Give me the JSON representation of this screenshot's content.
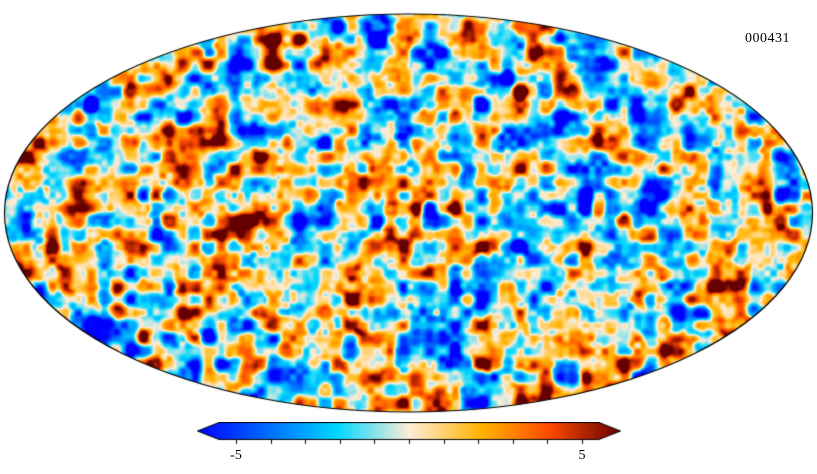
{
  "figure": {
    "background": "#ffffff"
  },
  "chart_data": {
    "type": "heatmap",
    "projection": "mollweide",
    "description": "Full-sky CMB-like Gaussian random temperature anisotropy field shown in a Mollweide projection ellipse with a Planck-style diverging colorbar below",
    "annotation": "000431",
    "outline_color": "#000000",
    "colormap": {
      "name": "planck",
      "stops": [
        {
          "pos": 0.0,
          "color": "#0000ff"
        },
        {
          "pos": 0.33,
          "color": "#00d7ff"
        },
        {
          "pos": 0.5,
          "color": "#ffedd9"
        },
        {
          "pos": 0.67,
          "color": "#ffb400"
        },
        {
          "pos": 0.83,
          "color": "#ff4b00"
        },
        {
          "pos": 1.0,
          "color": "#640000"
        }
      ]
    },
    "colorbar": {
      "min": -5,
      "max": 5,
      "min_label": "-5",
      "max_label": "5",
      "tick_values": [
        -5,
        -4,
        -3,
        -2,
        -1,
        0,
        1,
        2,
        3,
        4,
        5
      ],
      "arrow_ends": true
    }
  }
}
